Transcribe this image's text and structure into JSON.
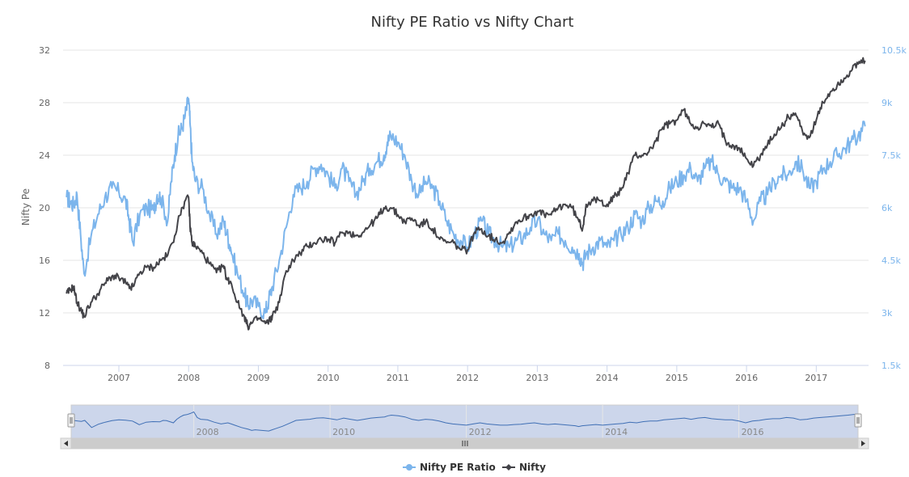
{
  "chart_data": {
    "type": "line",
    "title": "Nifty PE Ratio vs Nifty Chart",
    "y_left": {
      "label": "Nifty Pe",
      "ticks": [
        "8",
        "12",
        "16",
        "20",
        "24",
        "28",
        "32"
      ],
      "range": [
        8,
        32
      ]
    },
    "y_right": {
      "label": "",
      "ticks": [
        "1.5k",
        "3k",
        "4.5k",
        "6k",
        "7.5k",
        "9k",
        "10.5k"
      ],
      "range": [
        1500,
        10500
      ]
    },
    "x_axis": {
      "ticks": [
        "2007",
        "2008",
        "2009",
        "2010",
        "2011",
        "2012",
        "2013",
        "2014",
        "2015",
        "2016",
        "2017"
      ],
      "range": [
        2006.2,
        2017.75
      ]
    },
    "navigator": {
      "ticks": [
        "2008",
        "2010",
        "2012",
        "2014",
        "2016"
      ]
    },
    "grid": true,
    "legend_position": "bottom-center",
    "colors": {
      "pe": "#7cb5ec",
      "nifty": "#434348"
    },
    "series": [
      {
        "name": "Nifty PE Ratio",
        "axis": "left",
        "x": [
          2006.25,
          2006.3,
          2006.35,
          2006.4,
          2006.45,
          2006.5,
          2006.6,
          2006.7,
          2006.8,
          2006.9,
          2007.0,
          2007.1,
          2007.15,
          2007.2,
          2007.3,
          2007.4,
          2007.5,
          2007.55,
          2007.6,
          2007.7,
          2007.75,
          2007.8,
          2007.85,
          2007.9,
          2007.95,
          2008.0,
          2008.02,
          2008.05,
          2008.1,
          2008.2,
          2008.3,
          2008.4,
          2008.5,
          2008.55,
          2008.6,
          2008.7,
          2008.8,
          2008.85,
          2008.9,
          2009.0,
          2009.1,
          2009.15,
          2009.2,
          2009.3,
          2009.4,
          2009.5,
          2009.6,
          2009.7,
          2009.8,
          2009.9,
          2010.0,
          2010.1,
          2010.2,
          2010.3,
          2010.4,
          2010.5,
          2010.6,
          2010.7,
          2010.8,
          2010.85,
          2010.9,
          2011.0,
          2011.1,
          2011.2,
          2011.3,
          2011.4,
          2011.5,
          2011.6,
          2011.7,
          2011.8,
          2011.9,
          2012.0,
          2012.1,
          2012.2,
          2012.3,
          2012.4,
          2012.5,
          2012.6,
          2012.7,
          2012.8,
          2012.9,
          2013.0,
          2013.1,
          2013.2,
          2013.3,
          2013.4,
          2013.5,
          2013.6,
          2013.65,
          2013.7,
          2013.8,
          2013.9,
          2014.0,
          2014.1,
          2014.2,
          2014.3,
          2014.4,
          2014.5,
          2014.6,
          2014.7,
          2014.8,
          2014.9,
          2015.0,
          2015.1,
          2015.2,
          2015.3,
          2015.4,
          2015.5,
          2015.6,
          2015.7,
          2015.8,
          2015.9,
          2016.0,
          2016.1,
          2016.2,
          2016.3,
          2016.4,
          2016.5,
          2016.6,
          2016.7,
          2016.8,
          2016.9,
          2017.0,
          2017.1,
          2017.2,
          2017.3,
          2017.4,
          2017.5,
          2017.6,
          2017.7
        ],
        "values": [
          20.8,
          20.5,
          20.2,
          21.0,
          18.0,
          15.0,
          17.8,
          19.5,
          20.8,
          21.5,
          21.2,
          20.5,
          19.0,
          17.4,
          19.5,
          20.0,
          19.8,
          21.0,
          20.8,
          19.0,
          22.0,
          24.0,
          25.5,
          26.0,
          27.0,
          28.3,
          26.5,
          23.5,
          22.0,
          21.5,
          19.5,
          18.0,
          19.0,
          18.0,
          17.0,
          15.0,
          13.5,
          12.5,
          13.0,
          12.5,
          12.0,
          13.0,
          14.0,
          16.0,
          18.5,
          21.0,
          21.5,
          22.0,
          23.0,
          23.3,
          22.5,
          21.5,
          23.0,
          22.0,
          21.0,
          22.0,
          23.0,
          23.5,
          24.0,
          25.0,
          25.5,
          25.0,
          24.0,
          22.0,
          21.0,
          22.0,
          21.5,
          20.5,
          19.0,
          18.0,
          17.5,
          17.0,
          18.0,
          19.0,
          18.0,
          17.5,
          17.0,
          17.0,
          17.5,
          17.8,
          18.5,
          19.0,
          18.0,
          17.5,
          18.0,
          17.5,
          17.0,
          16.5,
          15.8,
          16.5,
          17.0,
          17.5,
          17.0,
          17.5,
          18.0,
          18.5,
          19.5,
          19.0,
          20.0,
          20.5,
          20.5,
          21.5,
          22.0,
          22.5,
          23.0,
          22.0,
          23.0,
          23.5,
          22.5,
          22.0,
          21.5,
          21.5,
          20.5,
          19.0,
          20.5,
          21.0,
          22.0,
          22.5,
          22.5,
          23.5,
          23.0,
          21.5,
          22.0,
          23.0,
          23.5,
          24.0,
          24.5,
          25.0,
          25.5,
          26.2
        ]
      },
      {
        "name": "Nifty",
        "axis": "right",
        "x": [
          2006.25,
          2006.3,
          2006.35,
          2006.4,
          2006.45,
          2006.5,
          2006.6,
          2006.7,
          2006.8,
          2006.9,
          2007.0,
          2007.1,
          2007.15,
          2007.2,
          2007.3,
          2007.4,
          2007.5,
          2007.6,
          2007.7,
          2007.8,
          2007.9,
          2008.0,
          2008.02,
          2008.05,
          2008.1,
          2008.2,
          2008.3,
          2008.4,
          2008.5,
          2008.55,
          2008.6,
          2008.7,
          2008.8,
          2008.85,
          2008.9,
          2009.0,
          2009.1,
          2009.15,
          2009.2,
          2009.3,
          2009.4,
          2009.5,
          2009.6,
          2009.7,
          2009.8,
          2009.9,
          2010.0,
          2010.1,
          2010.2,
          2010.3,
          2010.4,
          2010.5,
          2010.6,
          2010.7,
          2010.8,
          2010.9,
          2011.0,
          2011.1,
          2011.2,
          2011.3,
          2011.4,
          2011.5,
          2011.6,
          2011.7,
          2011.8,
          2011.9,
          2012.0,
          2012.1,
          2012.2,
          2012.3,
          2012.4,
          2012.5,
          2012.6,
          2012.7,
          2012.8,
          2012.9,
          2013.0,
          2013.1,
          2013.2,
          2013.3,
          2013.4,
          2013.5,
          2013.6,
          2013.65,
          2013.7,
          2013.8,
          2013.9,
          2014.0,
          2014.1,
          2014.2,
          2014.3,
          2014.4,
          2014.5,
          2014.6,
          2014.7,
          2014.8,
          2014.9,
          2015.0,
          2015.1,
          2015.2,
          2015.3,
          2015.4,
          2015.5,
          2015.6,
          2015.7,
          2015.8,
          2015.9,
          2016.0,
          2016.1,
          2016.2,
          2016.3,
          2016.4,
          2016.5,
          2016.6,
          2016.7,
          2016.8,
          2016.9,
          2017.0,
          2017.1,
          2017.2,
          2017.3,
          2017.4,
          2017.5,
          2017.6,
          2017.7
        ],
        "values": [
          3550,
          3650,
          3750,
          3300,
          3100,
          2900,
          3300,
          3550,
          3850,
          4050,
          4000,
          3850,
          3700,
          3750,
          4150,
          4300,
          4300,
          4500,
          4650,
          5200,
          6000,
          6300,
          5500,
          5000,
          4900,
          4700,
          4400,
          4150,
          4350,
          3950,
          3900,
          3300,
          2900,
          2600,
          2700,
          2850,
          2700,
          2750,
          2900,
          3300,
          4200,
          4500,
          4700,
          4900,
          5000,
          5100,
          5100,
          5000,
          5300,
          5300,
          5200,
          5300,
          5500,
          5700,
          6000,
          6000,
          5800,
          5600,
          5700,
          5500,
          5600,
          5400,
          5100,
          5000,
          5000,
          4800,
          4800,
          5300,
          5400,
          5200,
          5100,
          5000,
          5300,
          5600,
          5700,
          5800,
          5900,
          5800,
          5800,
          6000,
          6100,
          6000,
          5600,
          5400,
          6100,
          6200,
          6200,
          6100,
          6300,
          6500,
          7000,
          7500,
          7500,
          7600,
          7900,
          8300,
          8400,
          8500,
          8800,
          8400,
          8300,
          8400,
          8300,
          8400,
          7900,
          7800,
          7700,
          7400,
          7200,
          7500,
          7800,
          8100,
          8300,
          8600,
          8700,
          8200,
          8000,
          8500,
          9000,
          9300,
          9500,
          9700,
          9900,
          10100,
          10200
        ]
      }
    ]
  },
  "legend": {
    "items": [
      "Nifty PE Ratio",
      "Nifty"
    ]
  }
}
